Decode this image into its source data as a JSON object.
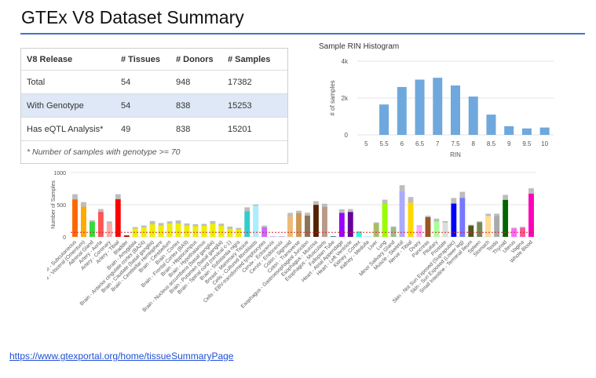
{
  "title": "GTEx V8 Dataset Summary",
  "table": {
    "headers": [
      "V8 Release",
      "# Tissues",
      "# Donors",
      "# Samples"
    ],
    "rows": [
      [
        "Total",
        "54",
        "948",
        "17382"
      ],
      [
        "With Genotype",
        "54",
        "838",
        "15253"
      ],
      [
        "Has eQTL Analysis*",
        "49",
        "838",
        "15201"
      ]
    ],
    "footnote": "* Number of samples with genotype >= 70"
  },
  "source_url": "https://www.gtexportal.org/home/tissueSummaryPage",
  "chart_data": [
    {
      "type": "bar",
      "title": "Sample RIN Histogram",
      "xlabel": "RIN",
      "ylabel": "# of samples",
      "x_ticks": [
        "5",
        "5.5",
        "6",
        "6.5",
        "7",
        "7.5",
        "8",
        "8.5",
        "9",
        "9.5",
        "10"
      ],
      "y_ticks": [
        "0",
        "2k",
        "4k"
      ],
      "ylim": [
        0,
        4000
      ],
      "bar_color": "#6fa8dc",
      "bins": [
        5.5,
        6,
        6.5,
        7,
        7.5,
        8,
        8.5,
        9,
        9.5,
        10
      ],
      "values": [
        1650,
        2600,
        3000,
        3100,
        2680,
        2080,
        1100,
        470,
        350,
        400
      ],
      "grid": true
    },
    {
      "type": "bar",
      "ylabel": "Number of Samples",
      "y_ticks": [
        "0",
        "500",
        "1000"
      ],
      "ylim": [
        0,
        1000
      ],
      "stacked": true,
      "threshold_line": 70,
      "threshold_color": "#d62728",
      "total_color": "#bdbdbd",
      "grid": true,
      "categories": [
        "Adipose - Subcutaneous",
        "Adipose - Visceral (Omentum)",
        "Adrenal Gland",
        "Artery - Aorta",
        "Artery - Coronary",
        "Artery - Tibial",
        "Bladder",
        "Brain - Amygdala",
        "Brain - Anterior cingulate cortex (BA24)",
        "Brain - Caudate (basal ganglia)",
        "Brain - Cerebellar Hemisphere",
        "Brain - Cerebellum",
        "Brain - Cortex",
        "Brain - Frontal Cortex (BA9)",
        "Brain - Hippocampus",
        "Brain - Hypothalamus",
        "Brain - Nucleus accumbens (basal ganglia)",
        "Brain - Putamen (basal ganglia)",
        "Brain - Spinal cord (cervical c-1)",
        "Brain - Substantia nigra",
        "Breast - Mammary Tissue",
        "Cells - Cultured fibroblasts",
        "Cells - EBV-transformed lymphocytes",
        "Cervix - Ectocervix",
        "Cervix - Endocervix",
        "Colon - Sigmoid",
        "Colon - Transverse",
        "Esophagus - Gastroesophageal Junction",
        "Esophagus - Mucosa",
        "Esophagus - Muscularis",
        "Fallopian Tube",
        "Heart - Atrial Appendage",
        "Heart - Left Ventricle",
        "Kidney - Cortex",
        "Kidney - Medulla",
        "Liver",
        "Lung",
        "Minor Salivary Gland",
        "Muscle - Skeletal",
        "Nerve - Tibial",
        "Ovary",
        "Pancreas",
        "Pituitary",
        "Prostate",
        "Skin - Not Sun Exposed (Suprapubic)",
        "Skin - Sun Exposed (Lower leg)",
        "Small Intestine - Terminal Ileum",
        "Spleen",
        "Stomach",
        "Testis",
        "Thyroid",
        "Uterus",
        "Vagina",
        "Whole Blood"
      ],
      "totals": [
        663,
        541,
        258,
        432,
        240,
        663,
        21,
        152,
        176,
        246,
        215,
        241,
        255,
        209,
        197,
        202,
        246,
        205,
        159,
        139,
        459,
        504,
        174,
        9,
        10,
        373,
        406,
        375,
        555,
        515,
        9,
        429,
        432,
        85,
        4,
        226,
        578,
        162,
        803,
        619,
        180,
        328,
        283,
        245,
        604,
        701,
        187,
        241,
        359,
        361,
        653,
        142,
        156,
        755
      ],
      "genotyped": [
        581,
        469,
        233,
        387,
        213,
        584,
        21,
        129,
        147,
        194,
        175,
        209,
        205,
        175,
        165,
        170,
        202,
        170,
        126,
        114,
        396,
        483,
        147,
        9,
        10,
        318,
        368,
        330,
        497,
        465,
        9,
        372,
        386,
        73,
        4,
        208,
        515,
        144,
        706,
        532,
        167,
        305,
        237,
        221,
        517,
        605,
        174,
        227,
        324,
        322,
        574,
        129,
        141,
        670
      ],
      "colors": [
        "#ff6600",
        "#ffaa00",
        "#33dd33",
        "#ff5555",
        "#ffaaaa",
        "#ff0000",
        "#aa0000",
        "#eeee00",
        "#eeee00",
        "#eeee00",
        "#eeee00",
        "#eeee00",
        "#eeee00",
        "#eeee00",
        "#eeee00",
        "#eeee00",
        "#eeee00",
        "#eeee00",
        "#eeee00",
        "#eeee00",
        "#33cccc",
        "#aaeeff",
        "#cc66ff",
        "#ccaaff",
        "#ccaadd",
        "#eebb77",
        "#cc9955",
        "#8b7355",
        "#552200",
        "#bb9988",
        "#006699",
        "#9900ff",
        "#660099",
        "#22ffdd",
        "#22ffdd",
        "#aabb66",
        "#99ff00",
        "#99bb88",
        "#aaaaff",
        "#ffd700",
        "#ffaaff",
        "#995522",
        "#aaff99",
        "#dddddd",
        "#0000ff",
        "#7777ff",
        "#555522",
        "#778855",
        "#ffdd99",
        "#aaaaaa",
        "#006600",
        "#ff66ff",
        "#ff5599",
        "#ff00bb"
      ]
    }
  ]
}
